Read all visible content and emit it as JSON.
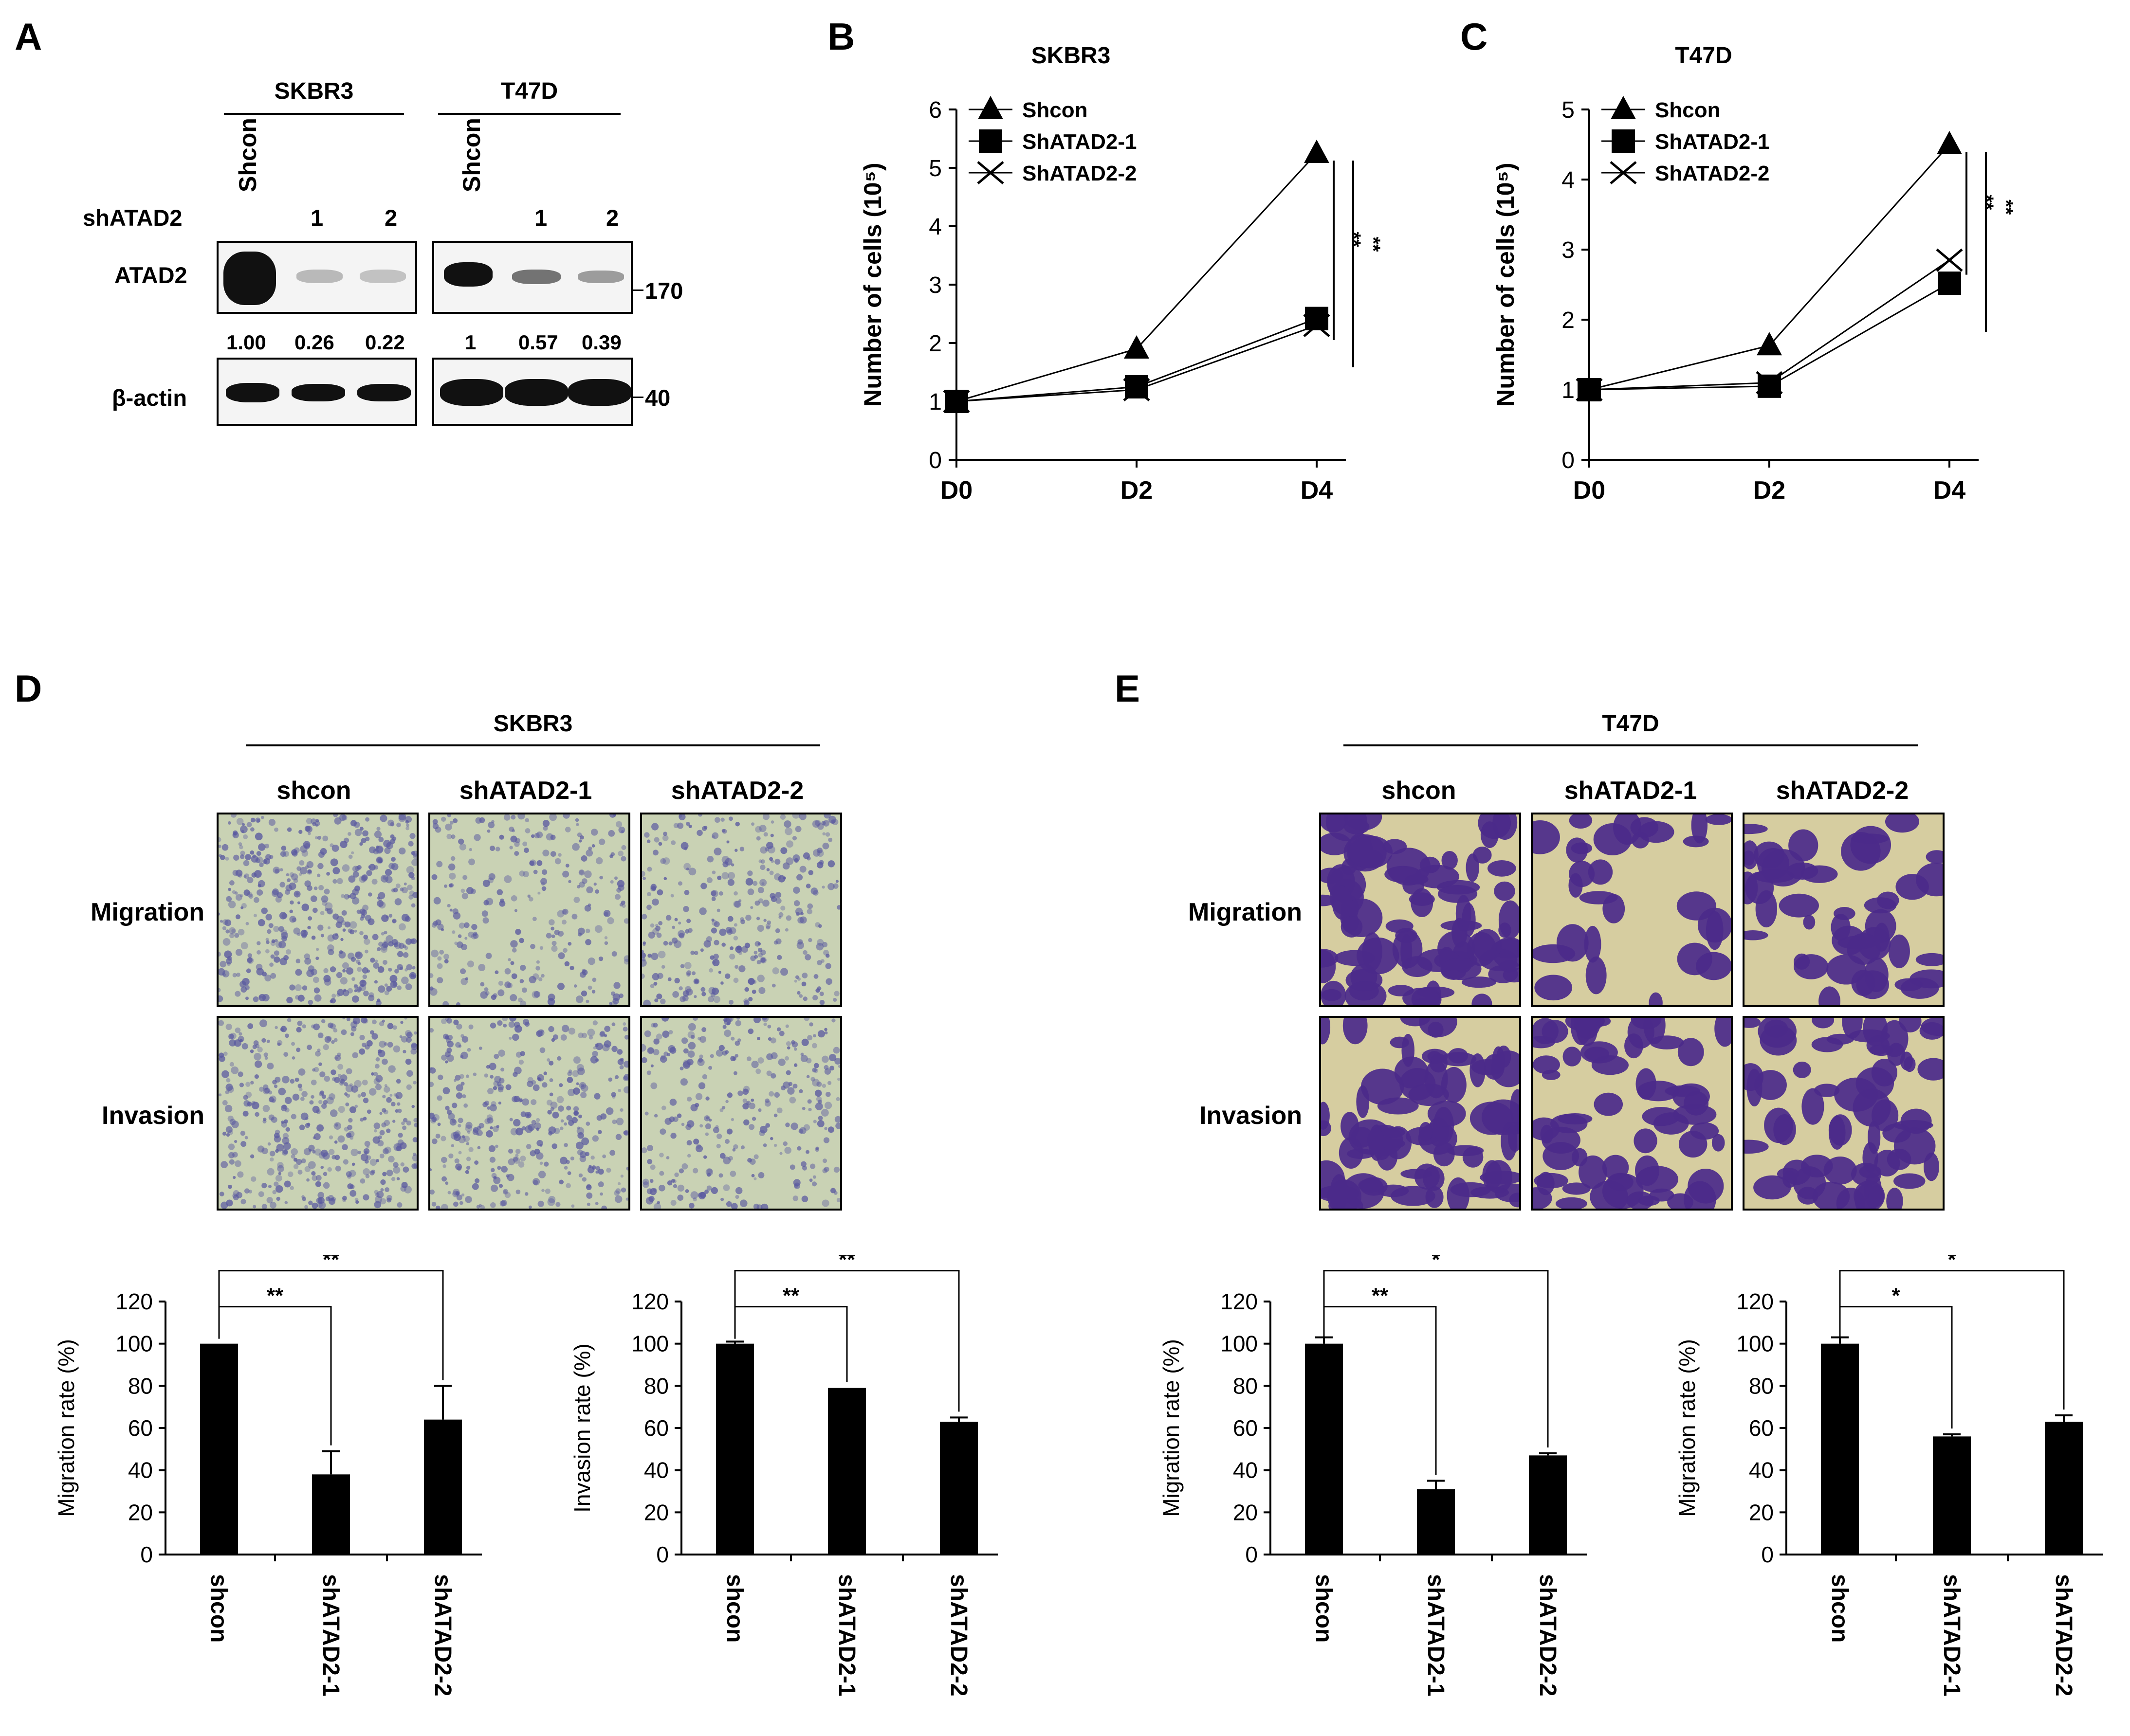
{
  "panels": {
    "A": "A",
    "B": "B",
    "C": "C",
    "D": "D",
    "E": "E"
  },
  "blot": {
    "cell_lines": [
      "SKBR3",
      "T47D"
    ],
    "row_label_sh": "shATAD2",
    "lane_labels": [
      "Shcon",
      "1",
      "2",
      "Shcon",
      "1",
      "2"
    ],
    "protein1": "ATAD2",
    "protein2": "β-actin",
    "marker1": "170",
    "marker2": "40",
    "quant": [
      "1.00",
      "0.26",
      "0.22",
      "1",
      "0.57",
      "0.39"
    ],
    "atad2_levels": [
      1.0,
      0.26,
      0.22,
      1.0,
      0.57,
      0.39
    ]
  },
  "micro": {
    "D_title": "SKBR3",
    "E_title": "T47D",
    "columns": [
      "shcon",
      "shATAD2-1",
      "shATAD2-2"
    ],
    "rows": [
      "Migration",
      "Invasion"
    ]
  },
  "colors": {
    "skbr3_bg": "#c9d2b4",
    "skbr3_cell": "#5a59a0",
    "t47d_bg": "#d6cda0",
    "t47d_cell": "#4b2a8a"
  },
  "chart_data": [
    {
      "id": "B",
      "type": "line",
      "title": "SKBR3",
      "xlabel": "",
      "ylabel": "Number of cells (10⁵)",
      "categories": [
        "D0",
        "D2",
        "D4"
      ],
      "ylim": [
        0,
        6
      ],
      "yticks": [
        "0",
        "1",
        "2",
        "3",
        "4",
        "5",
        "6"
      ],
      "series": [
        {
          "name": "Shcon",
          "marker": "triangle",
          "values": [
            1.0,
            1.9,
            5.25
          ]
        },
        {
          "name": "ShATAD2-1",
          "marker": "square",
          "values": [
            1.0,
            1.25,
            2.42
          ]
        },
        {
          "name": "ShATAD2-2",
          "marker": "x",
          "values": [
            1.0,
            1.2,
            2.3
          ]
        }
      ],
      "annotations": [
        "**",
        "**"
      ]
    },
    {
      "id": "C",
      "type": "line",
      "title": "T47D",
      "xlabel": "",
      "ylabel": "Number of cells (10⁵)",
      "categories": [
        "D0",
        "D2",
        "D4"
      ],
      "ylim": [
        0,
        5
      ],
      "yticks": [
        "0",
        "1",
        "2",
        "3",
        "4",
        "5"
      ],
      "series": [
        {
          "name": "Shcon",
          "marker": "triangle",
          "values": [
            1.0,
            1.63,
            4.5
          ]
        },
        {
          "name": "ShATAD2-1",
          "marker": "square",
          "values": [
            1.0,
            1.05,
            2.52
          ]
        },
        {
          "name": "ShATAD2-2",
          "marker": "x",
          "values": [
            1.0,
            1.1,
            2.85
          ]
        }
      ],
      "annotations": [
        "**",
        "**"
      ]
    },
    {
      "id": "D1",
      "type": "bar",
      "ylabel": "Migration rate (%)",
      "categories": [
        "shcon",
        "shATAD2-1",
        "shATAD2-2"
      ],
      "ylim": [
        0,
        120
      ],
      "yticks": [
        "0",
        "20",
        "40",
        "60",
        "80",
        "100",
        "120"
      ],
      "values": [
        100,
        38,
        64
      ],
      "errors": [
        0,
        11,
        16
      ],
      "annotations": [
        "**",
        "**"
      ]
    },
    {
      "id": "D2",
      "type": "bar",
      "ylabel": "Invasion rate (%)",
      "categories": [
        "shcon",
        "shATAD2-1",
        "shATAD2-2"
      ],
      "ylim": [
        0,
        120
      ],
      "yticks": [
        "0",
        "20",
        "40",
        "60",
        "80",
        "100",
        "120"
      ],
      "values": [
        100,
        79,
        63
      ],
      "errors": [
        1,
        0,
        2
      ],
      "annotations": [
        "**",
        "**"
      ]
    },
    {
      "id": "E1",
      "type": "bar",
      "ylabel": "Migration rate (%)",
      "categories": [
        "shcon",
        "shATAD2-1",
        "shATAD2-2"
      ],
      "ylim": [
        0,
        120
      ],
      "yticks": [
        "0",
        "20",
        "40",
        "60",
        "80",
        "100",
        "120"
      ],
      "values": [
        100,
        31,
        47
      ],
      "errors": [
        3,
        4,
        1
      ],
      "annotations": [
        "**",
        "*"
      ]
    },
    {
      "id": "E2",
      "type": "bar",
      "ylabel": "Migration rate (%)",
      "categories": [
        "shcon",
        "shATAD2-1",
        "shATAD2-2"
      ],
      "ylim": [
        0,
        120
      ],
      "yticks": [
        "0",
        "20",
        "40",
        "60",
        "80",
        "100",
        "120"
      ],
      "values": [
        100,
        56,
        63
      ],
      "errors": [
        3,
        1,
        3
      ],
      "annotations": [
        "*",
        "*"
      ]
    }
  ]
}
